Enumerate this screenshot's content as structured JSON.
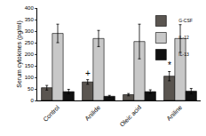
{
  "chart_data": {
    "type": "bar",
    "y_label": "Serum cytokines (pg/ml)",
    "categories": [
      "Control",
      "Anilide",
      "Oleic acid",
      "Aniline"
    ],
    "series": [
      {
        "name": "G-CSF",
        "color": "#5a5550",
        "values": [
          55,
          80,
          25,
          105
        ],
        "errors": [
          10,
          10,
          5,
          20
        ]
      },
      {
        "name": "IL-12",
        "color": "#c8c8c8",
        "values": [
          290,
          268,
          255,
          268
        ],
        "errors": [
          40,
          35,
          75,
          60
        ]
      },
      {
        "name": "IL-13",
        "color": "#111111",
        "values": [
          38,
          18,
          38,
          40
        ],
        "errors": [
          10,
          4,
          8,
          12
        ]
      }
    ],
    "annotations": [
      {
        "text": "+",
        "category": "Anilide",
        "series": "G-CSF"
      },
      {
        "text": "*",
        "category": "Aniline",
        "series": "G-CSF"
      }
    ],
    "ylim": [
      0,
      400
    ],
    "yticks": [
      0,
      50,
      100,
      150,
      200,
      250,
      300,
      350,
      400
    ],
    "grid": false,
    "legend": "top-right"
  }
}
